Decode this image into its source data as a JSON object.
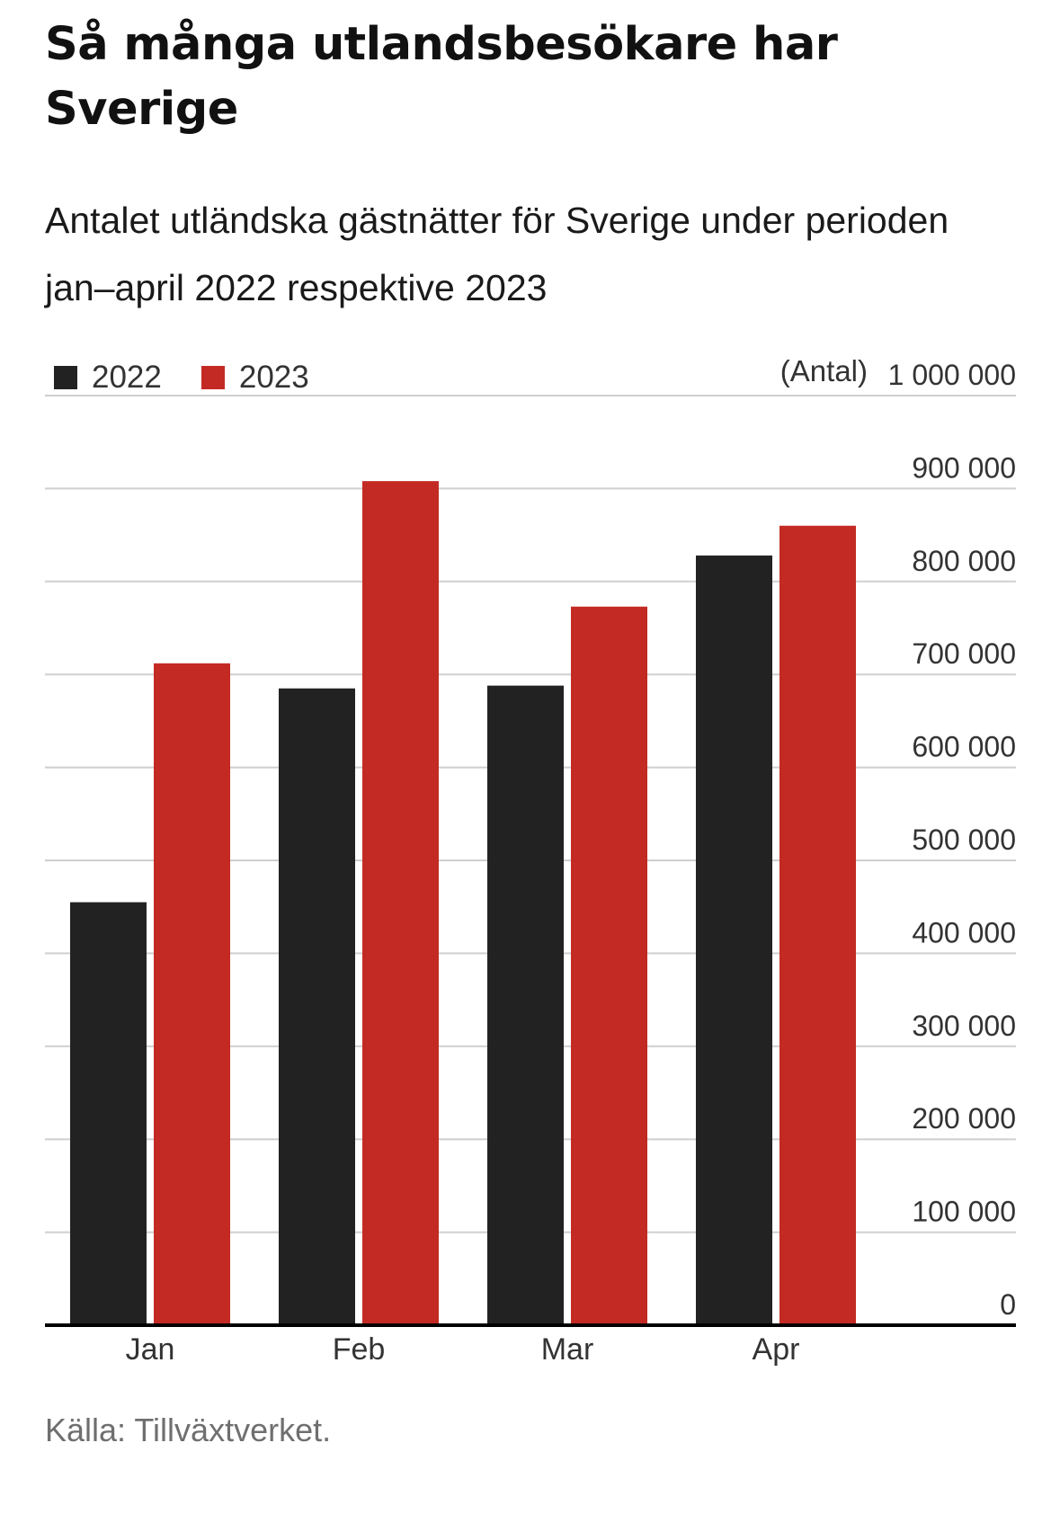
{
  "header": {
    "title": "Så många utlandsbesökare har Sverige",
    "subtitle": "Antalet utländska gästnätter för Sverige under perioden jan–april 2022 respektive 2023"
  },
  "legend": {
    "items": [
      {
        "label": "2022",
        "color": "#222222"
      },
      {
        "label": "2023",
        "color": "#c42a24"
      }
    ]
  },
  "chart_data": {
    "type": "bar",
    "categories": [
      "Jan",
      "Feb",
      "Mar",
      "Apr"
    ],
    "series": [
      {
        "name": "2022",
        "color": "#222222",
        "values": [
          455000,
          685000,
          688000,
          828000
        ]
      },
      {
        "name": "2023",
        "color": "#c42a24",
        "values": [
          712000,
          908000,
          773000,
          860000
        ]
      }
    ],
    "y_unit": "(Antal)",
    "ylim": [
      0,
      1000000
    ],
    "y_ticks": [
      0,
      100000,
      200000,
      300000,
      400000,
      500000,
      600000,
      700000,
      800000,
      900000,
      1000000
    ],
    "y_tick_labels": [
      "0",
      "100 000",
      "200 000",
      "300 000",
      "400 000",
      "500 000",
      "600 000",
      "700 000",
      "800 000",
      "900 000",
      "1 000 000"
    ],
    "y_axis_position": "right",
    "grid": true,
    "legend_position": "top-left"
  },
  "footer": {
    "source": "Källa: Tillväxtverket."
  }
}
